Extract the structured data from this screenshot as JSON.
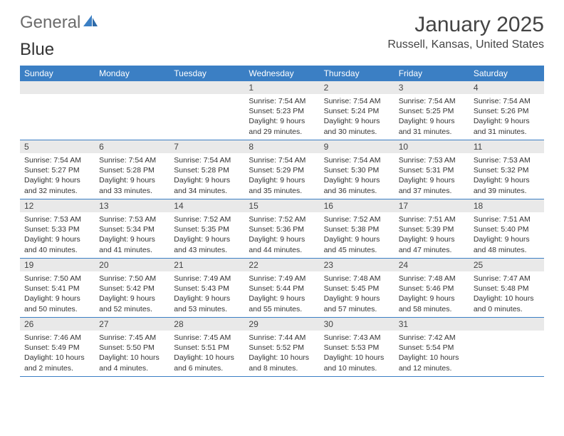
{
  "logo": {
    "text_part1": "General",
    "text_part2": "Blue",
    "color_gray": "#6b6b6b",
    "color_blue": "#3b7fc4"
  },
  "header": {
    "month_title": "January 2025",
    "location": "Russell, Kansas, United States"
  },
  "colors": {
    "header_bg": "#3b7fc4",
    "header_text": "#ffffff",
    "daynum_bg": "#e9e9e9",
    "border": "#3b7fc4",
    "body_text": "#333333"
  },
  "weekdays": [
    "Sunday",
    "Monday",
    "Tuesday",
    "Wednesday",
    "Thursday",
    "Friday",
    "Saturday"
  ],
  "weeks": [
    [
      null,
      null,
      null,
      {
        "n": "1",
        "sunrise": "7:54 AM",
        "sunset": "5:23 PM",
        "daylight": "9 hours and 29 minutes."
      },
      {
        "n": "2",
        "sunrise": "7:54 AM",
        "sunset": "5:24 PM",
        "daylight": "9 hours and 30 minutes."
      },
      {
        "n": "3",
        "sunrise": "7:54 AM",
        "sunset": "5:25 PM",
        "daylight": "9 hours and 31 minutes."
      },
      {
        "n": "4",
        "sunrise": "7:54 AM",
        "sunset": "5:26 PM",
        "daylight": "9 hours and 31 minutes."
      }
    ],
    [
      {
        "n": "5",
        "sunrise": "7:54 AM",
        "sunset": "5:27 PM",
        "daylight": "9 hours and 32 minutes."
      },
      {
        "n": "6",
        "sunrise": "7:54 AM",
        "sunset": "5:28 PM",
        "daylight": "9 hours and 33 minutes."
      },
      {
        "n": "7",
        "sunrise": "7:54 AM",
        "sunset": "5:28 PM",
        "daylight": "9 hours and 34 minutes."
      },
      {
        "n": "8",
        "sunrise": "7:54 AM",
        "sunset": "5:29 PM",
        "daylight": "9 hours and 35 minutes."
      },
      {
        "n": "9",
        "sunrise": "7:54 AM",
        "sunset": "5:30 PM",
        "daylight": "9 hours and 36 minutes."
      },
      {
        "n": "10",
        "sunrise": "7:53 AM",
        "sunset": "5:31 PM",
        "daylight": "9 hours and 37 minutes."
      },
      {
        "n": "11",
        "sunrise": "7:53 AM",
        "sunset": "5:32 PM",
        "daylight": "9 hours and 39 minutes."
      }
    ],
    [
      {
        "n": "12",
        "sunrise": "7:53 AM",
        "sunset": "5:33 PM",
        "daylight": "9 hours and 40 minutes."
      },
      {
        "n": "13",
        "sunrise": "7:53 AM",
        "sunset": "5:34 PM",
        "daylight": "9 hours and 41 minutes."
      },
      {
        "n": "14",
        "sunrise": "7:52 AM",
        "sunset": "5:35 PM",
        "daylight": "9 hours and 43 minutes."
      },
      {
        "n": "15",
        "sunrise": "7:52 AM",
        "sunset": "5:36 PM",
        "daylight": "9 hours and 44 minutes."
      },
      {
        "n": "16",
        "sunrise": "7:52 AM",
        "sunset": "5:38 PM",
        "daylight": "9 hours and 45 minutes."
      },
      {
        "n": "17",
        "sunrise": "7:51 AM",
        "sunset": "5:39 PM",
        "daylight": "9 hours and 47 minutes."
      },
      {
        "n": "18",
        "sunrise": "7:51 AM",
        "sunset": "5:40 PM",
        "daylight": "9 hours and 48 minutes."
      }
    ],
    [
      {
        "n": "19",
        "sunrise": "7:50 AM",
        "sunset": "5:41 PM",
        "daylight": "9 hours and 50 minutes."
      },
      {
        "n": "20",
        "sunrise": "7:50 AM",
        "sunset": "5:42 PM",
        "daylight": "9 hours and 52 minutes."
      },
      {
        "n": "21",
        "sunrise": "7:49 AM",
        "sunset": "5:43 PM",
        "daylight": "9 hours and 53 minutes."
      },
      {
        "n": "22",
        "sunrise": "7:49 AM",
        "sunset": "5:44 PM",
        "daylight": "9 hours and 55 minutes."
      },
      {
        "n": "23",
        "sunrise": "7:48 AM",
        "sunset": "5:45 PM",
        "daylight": "9 hours and 57 minutes."
      },
      {
        "n": "24",
        "sunrise": "7:48 AM",
        "sunset": "5:46 PM",
        "daylight": "9 hours and 58 minutes."
      },
      {
        "n": "25",
        "sunrise": "7:47 AM",
        "sunset": "5:48 PM",
        "daylight": "10 hours and 0 minutes."
      }
    ],
    [
      {
        "n": "26",
        "sunrise": "7:46 AM",
        "sunset": "5:49 PM",
        "daylight": "10 hours and 2 minutes."
      },
      {
        "n": "27",
        "sunrise": "7:45 AM",
        "sunset": "5:50 PM",
        "daylight": "10 hours and 4 minutes."
      },
      {
        "n": "28",
        "sunrise": "7:45 AM",
        "sunset": "5:51 PM",
        "daylight": "10 hours and 6 minutes."
      },
      {
        "n": "29",
        "sunrise": "7:44 AM",
        "sunset": "5:52 PM",
        "daylight": "10 hours and 8 minutes."
      },
      {
        "n": "30",
        "sunrise": "7:43 AM",
        "sunset": "5:53 PM",
        "daylight": "10 hours and 10 minutes."
      },
      {
        "n": "31",
        "sunrise": "7:42 AM",
        "sunset": "5:54 PM",
        "daylight": "10 hours and 12 minutes."
      },
      null
    ]
  ],
  "labels": {
    "sunrise": "Sunrise: ",
    "sunset": "Sunset: ",
    "daylight": "Daylight: "
  }
}
